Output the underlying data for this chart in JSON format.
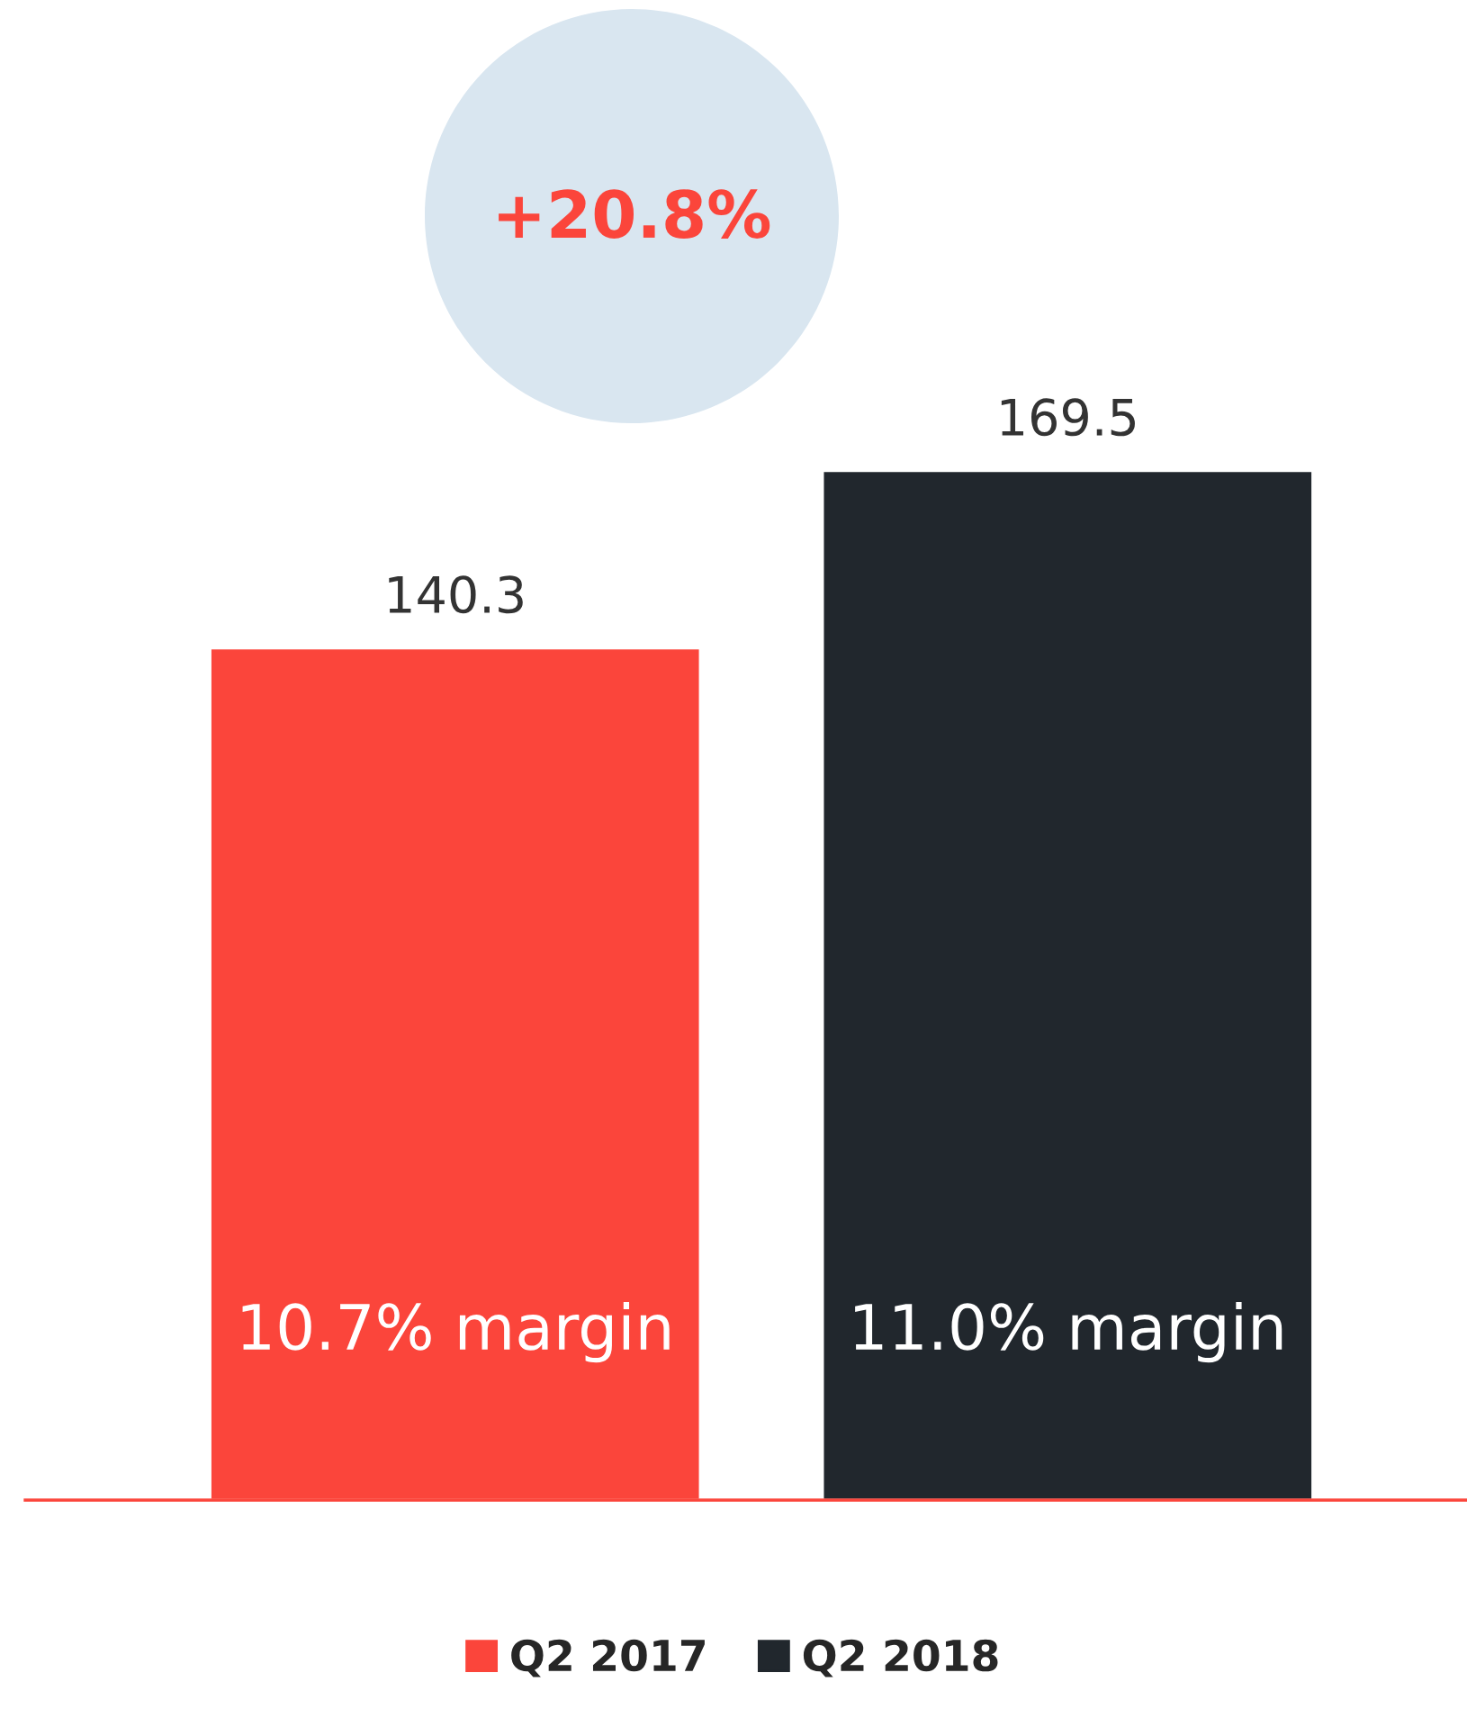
{
  "chart_data": {
    "type": "bar",
    "categories": [
      null
    ],
    "series": [
      {
        "name": "Q2 2017",
        "color": "#fb453b",
        "values": [
          140.3
        ]
      },
      {
        "name": "Q2 2018",
        "color": "#21272d",
        "values": [
          169.5
        ]
      }
    ],
    "data_labels": true,
    "legend": "bottom",
    "grid": false,
    "tick_labels": false,
    "annotations": [
      "+20.8%",
      "10.7% margin",
      "11.0% margin"
    ]
  }
}
